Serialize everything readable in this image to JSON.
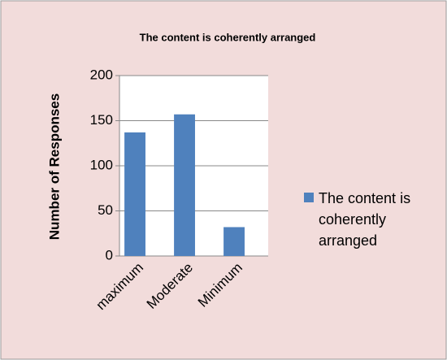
{
  "chart_data": {
    "type": "bar",
    "title": "The content is coherently arranged",
    "y_label": "Number of Responses",
    "categories": [
      "maximum",
      "Moderate",
      "Minimum"
    ],
    "series": [
      {
        "name": "The content is coherently arranged",
        "color": "#4f81bd",
        "values": [
          137,
          157,
          32
        ]
      }
    ],
    "ylim": [
      0,
      200
    ],
    "yticks": [
      0,
      50,
      100,
      150,
      200
    ],
    "grid": true,
    "legend": "right"
  }
}
